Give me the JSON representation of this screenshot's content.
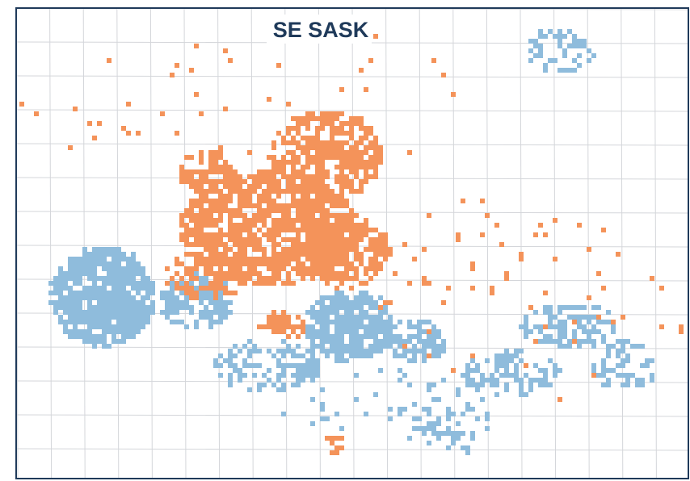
{
  "map": {
    "title": "SE SASK"
  }
}
